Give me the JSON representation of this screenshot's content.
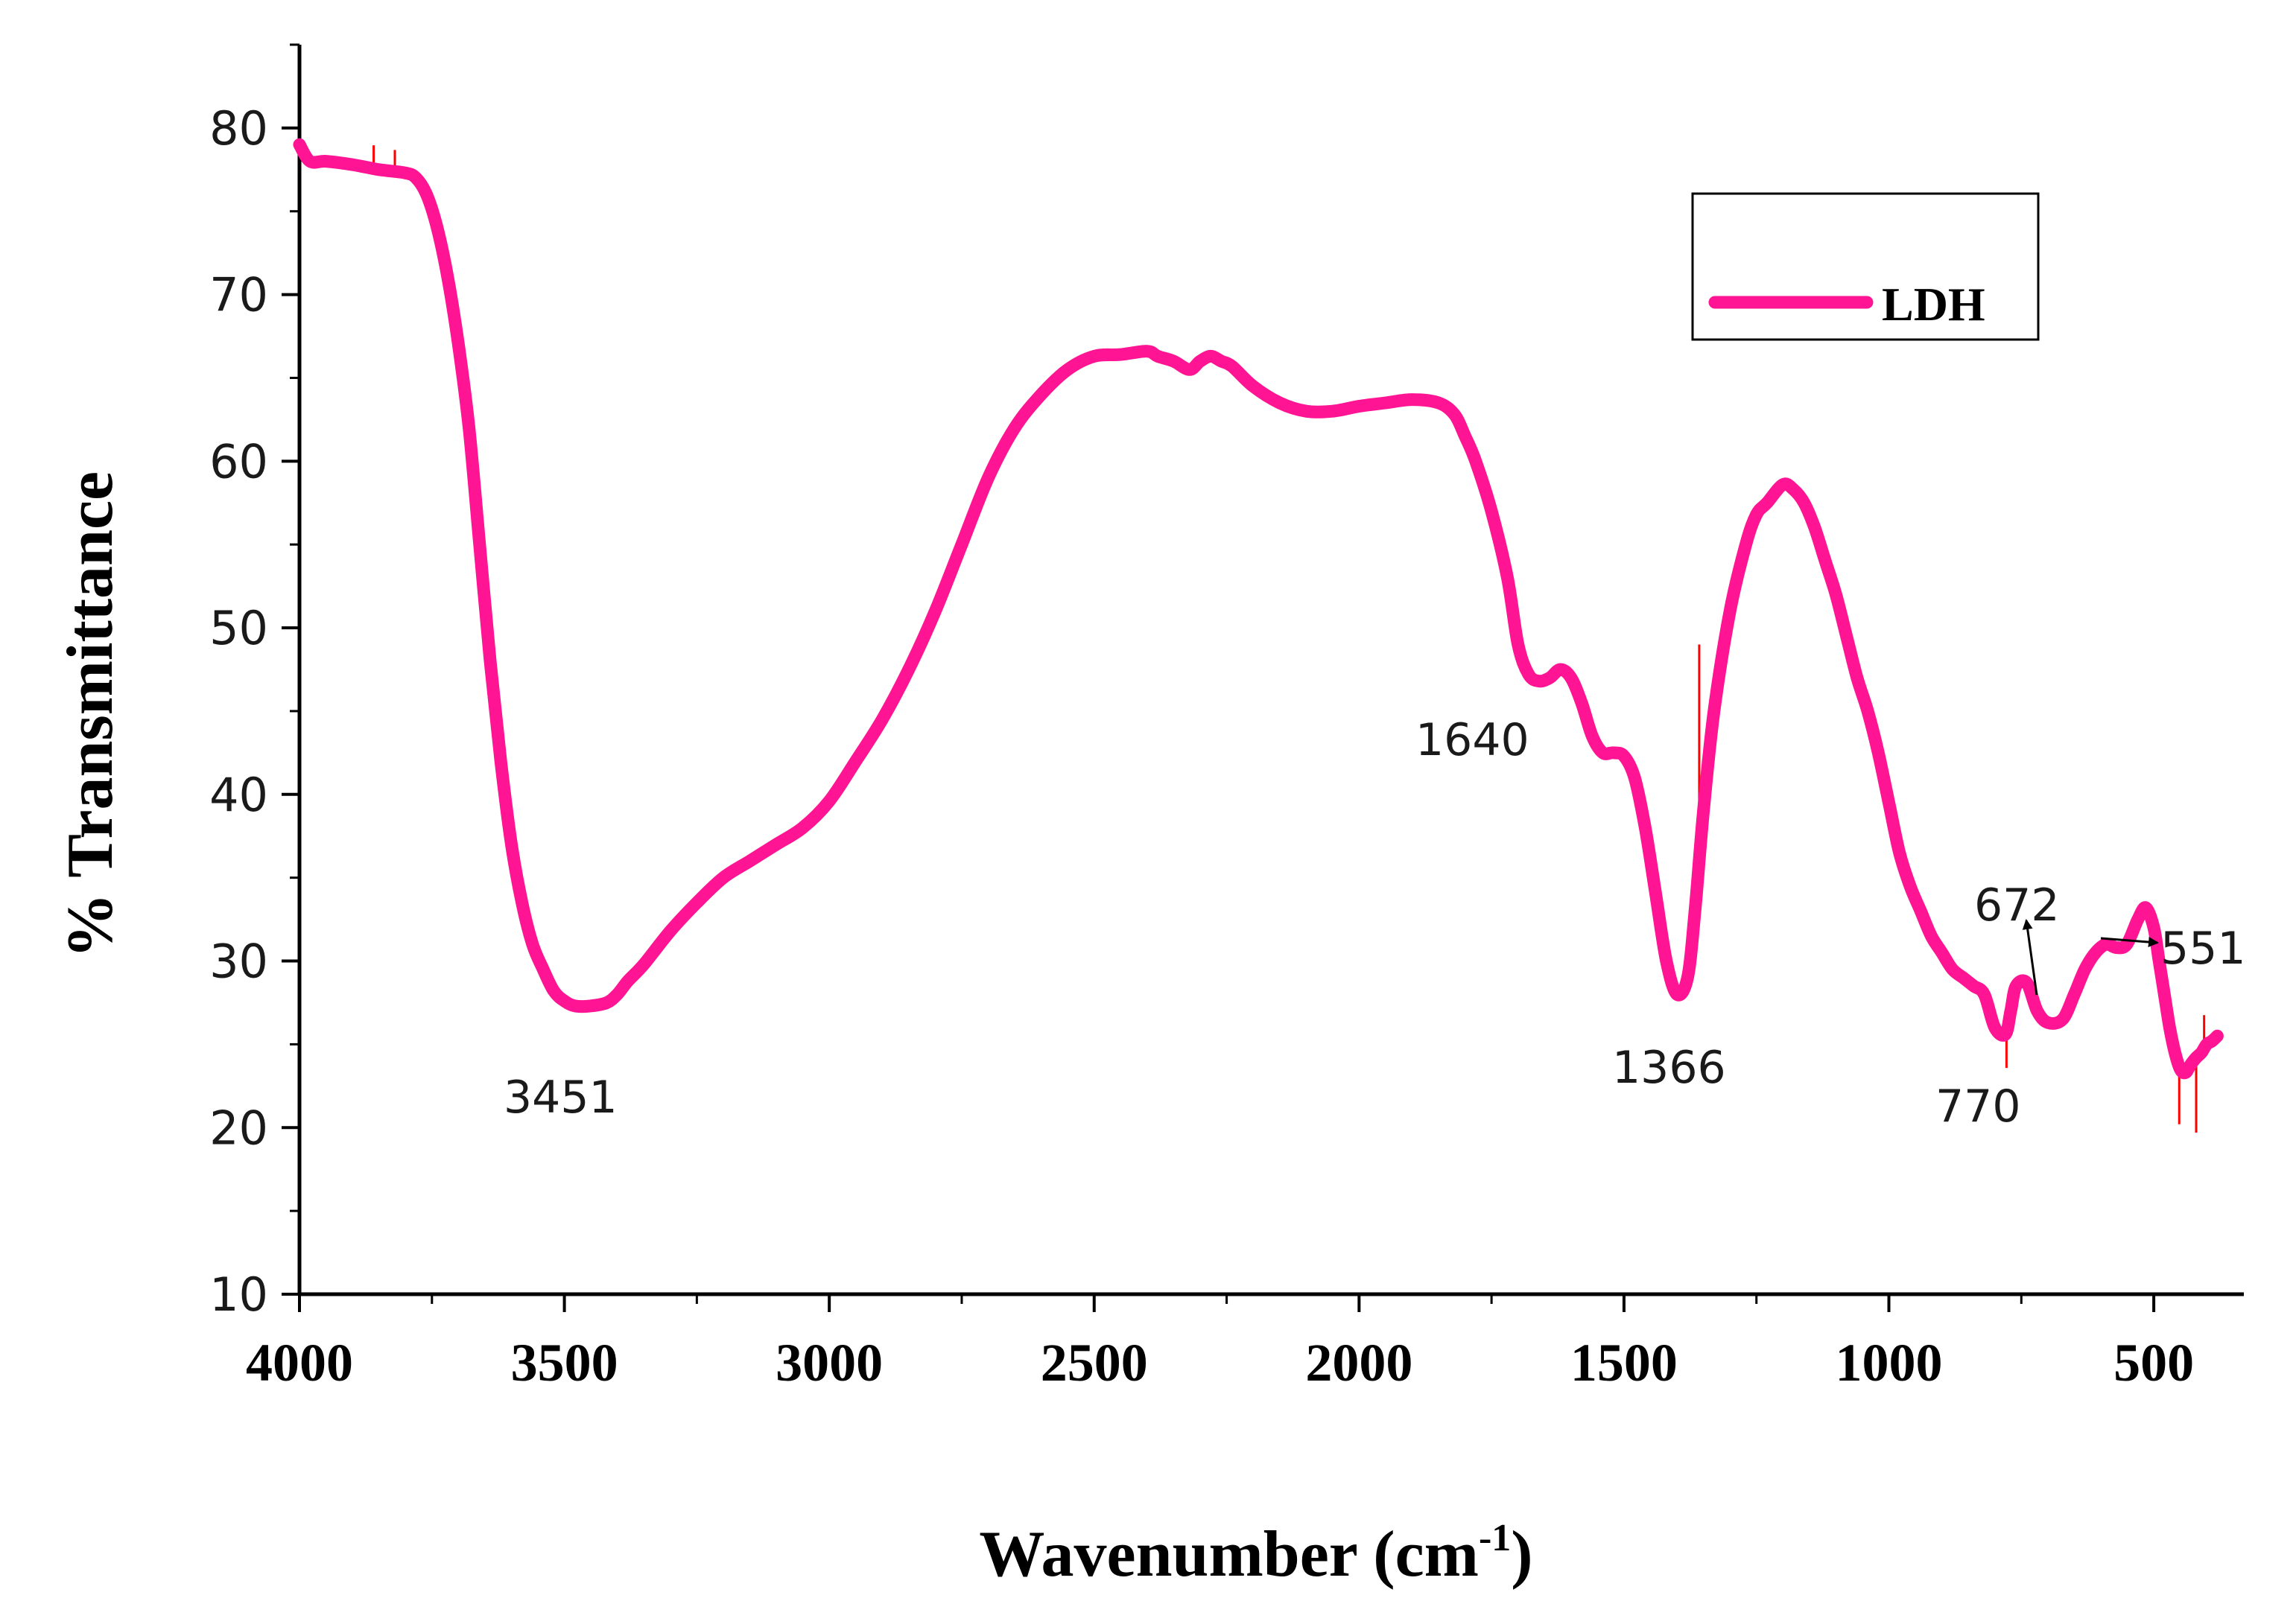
{
  "chart_data": {
    "type": "line",
    "xlabel": "Wavenumber (cm",
    "xlabel_sup": "-1",
    "xlabel_close": ")",
    "ylabel": "% Transmittance",
    "xlim": [
      4000,
      330
    ],
    "ylim": [
      10,
      85
    ],
    "x_reversed": true,
    "xticks": [
      4000,
      3500,
      3000,
      2500,
      2000,
      1500,
      1000,
      500
    ],
    "xtick_labels": [
      "4000",
      "3500",
      "3000",
      "2500",
      "2000",
      "1500",
      "1000",
      "500"
    ],
    "yticks": [
      10,
      20,
      30,
      40,
      50,
      60,
      70,
      80
    ],
    "ytick_labels": [
      "10",
      "20",
      "30",
      "40",
      "50",
      "60",
      "70",
      "80"
    ],
    "grid": false,
    "legend": {
      "position": "top-right",
      "entries": [
        "LDH"
      ]
    },
    "colors": {
      "line": "#ff1493",
      "noise": "#ff0000",
      "axis": "#000000"
    },
    "series": [
      {
        "name": "LDH",
        "x": [
          4000,
          3980,
          3950,
          3900,
          3850,
          3800,
          3780,
          3760,
          3740,
          3720,
          3700,
          3680,
          3660,
          3640,
          3620,
          3600,
          3580,
          3560,
          3540,
          3520,
          3500,
          3480,
          3451,
          3420,
          3400,
          3380,
          3350,
          3300,
          3250,
          3200,
          3150,
          3100,
          3050,
          3000,
          2950,
          2900,
          2850,
          2800,
          2750,
          2700,
          2650,
          2600,
          2550,
          2500,
          2450,
          2400,
          2380,
          2350,
          2320,
          2300,
          2280,
          2260,
          2240,
          2200,
          2150,
          2100,
          2050,
          2000,
          1950,
          1900,
          1850,
          1820,
          1800,
          1780,
          1750,
          1720,
          1700,
          1680,
          1660,
          1640,
          1620,
          1600,
          1580,
          1560,
          1540,
          1520,
          1500,
          1480,
          1460,
          1440,
          1420,
          1400,
          1380,
          1366,
          1350,
          1330,
          1300,
          1270,
          1250,
          1230,
          1200,
          1180,
          1160,
          1140,
          1120,
          1100,
          1080,
          1060,
          1040,
          1020,
          1000,
          980,
          960,
          940,
          920,
          900,
          880,
          860,
          840,
          820,
          800,
          780,
          770,
          760,
          740,
          720,
          700,
          672,
          650,
          630,
          610,
          590,
          570,
          551,
          530,
          515,
          500,
          490,
          480,
          470,
          460,
          450,
          440,
          430,
          420,
          410,
          400,
          390,
          380
        ],
        "values": [
          79.0,
          78.0,
          78.0,
          77.8,
          77.5,
          77.3,
          77.0,
          76.0,
          74.0,
          71.0,
          67.0,
          62.0,
          55.0,
          48.0,
          42.0,
          37.0,
          33.5,
          31.0,
          29.5,
          28.2,
          27.6,
          27.3,
          27.3,
          27.5,
          28.0,
          28.8,
          29.8,
          31.8,
          33.5,
          35.0,
          36.0,
          37.0,
          38.0,
          39.6,
          42.0,
          44.5,
          47.5,
          51.0,
          55.0,
          59.0,
          62.0,
          64.0,
          65.5,
          66.3,
          66.4,
          66.6,
          66.3,
          66.0,
          65.5,
          66.0,
          66.3,
          66.0,
          65.7,
          64.5,
          63.5,
          63.0,
          63.0,
          63.3,
          63.5,
          63.7,
          63.5,
          62.8,
          61.5,
          60.0,
          57.0,
          53.0,
          49.0,
          47.2,
          46.8,
          47.0,
          47.5,
          47.0,
          45.5,
          43.5,
          42.5,
          42.5,
          42.3,
          41.0,
          38.0,
          34.0,
          30.0,
          28.0,
          29.0,
          33.0,
          39.0,
          45.0,
          51.0,
          55.0,
          56.8,
          57.5,
          58.6,
          58.3,
          57.5,
          56.0,
          54.0,
          52.0,
          49.5,
          47.0,
          45.0,
          42.5,
          39.5,
          36.5,
          34.5,
          33.0,
          31.5,
          30.5,
          29.5,
          29.0,
          28.5,
          28.0,
          26.0,
          25.6,
          27.0,
          28.5,
          28.7,
          27.0,
          26.3,
          26.5,
          28.0,
          29.5,
          30.5,
          31.0,
          30.8,
          31.0,
          32.5,
          33.2,
          32.0,
          30.0,
          28.0,
          26.0,
          24.5,
          23.5,
          23.3,
          23.8,
          24.2,
          24.5,
          25.0,
          25.2,
          25.5
        ]
      }
    ],
    "annotations": [
      "3451",
      "1640",
      "1366",
      "770",
      "672",
      "551"
    ]
  }
}
